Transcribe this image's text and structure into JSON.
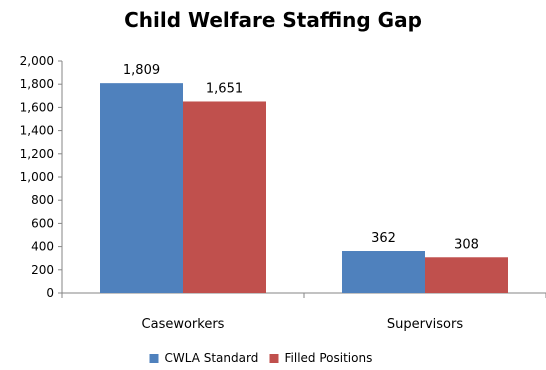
{
  "chart_data": {
    "type": "bar",
    "title": "Child Welfare Staffing Gap",
    "categories": [
      "Caseworkers",
      "Supervisors"
    ],
    "series": [
      {
        "name": "CWLA Standard",
        "values": [
          1809,
          362
        ],
        "labels": [
          "1,809",
          "362"
        ],
        "color": "#4F81BD"
      },
      {
        "name": "Filled Positions",
        "values": [
          1651,
          308
        ],
        "labels": [
          "1,651",
          "308"
        ],
        "color": "#C0504D"
      }
    ],
    "ylim": [
      0,
      2000
    ],
    "yticks": [
      {
        "value": 0,
        "label": "0"
      },
      {
        "value": 200,
        "label": "200"
      },
      {
        "value": 400,
        "label": "400"
      },
      {
        "value": 600,
        "label": "600"
      },
      {
        "value": 800,
        "label": "800"
      },
      {
        "value": 1000,
        "label": "1,000"
      },
      {
        "value": 1200,
        "label": "1,200"
      },
      {
        "value": 1400,
        "label": "1,400"
      },
      {
        "value": 1600,
        "label": "1,600"
      },
      {
        "value": 1800,
        "label": "1,800"
      },
      {
        "value": 2000,
        "label": "2,000"
      }
    ],
    "grid": false,
    "legend_position": "bottom"
  }
}
